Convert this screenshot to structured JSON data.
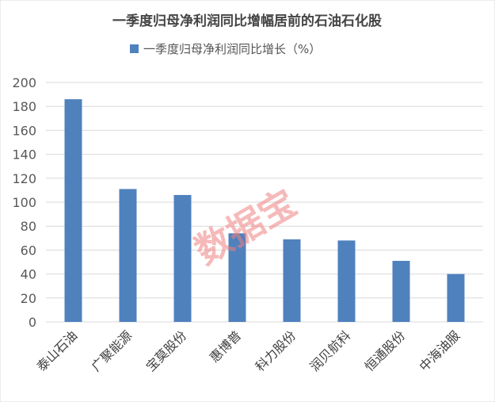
{
  "chart_data": {
    "type": "bar",
    "title": "一季度归母净利润同比增幅居前的石油石化股",
    "legend": {
      "position": "top",
      "entries": [
        "一季度归母净利润同比增长（%）"
      ]
    },
    "categories": [
      "泰山石油",
      "广聚能源",
      "宝莫股份",
      "惠博普",
      "科力股份",
      "润贝航科",
      "恒通股份",
      "中海油服"
    ],
    "series": [
      {
        "name": "一季度归母净利润同比增长（%）",
        "values": [
          186,
          111,
          106,
          74,
          69,
          68,
          51,
          40
        ],
        "color": "#4f81bd"
      }
    ],
    "ylim": [
      0,
      200
    ],
    "yticks": [
      0,
      20,
      40,
      60,
      80,
      100,
      120,
      140,
      160,
      180,
      200
    ],
    "grid": true,
    "xlabel": "",
    "ylabel": ""
  },
  "watermark": "数据宝"
}
